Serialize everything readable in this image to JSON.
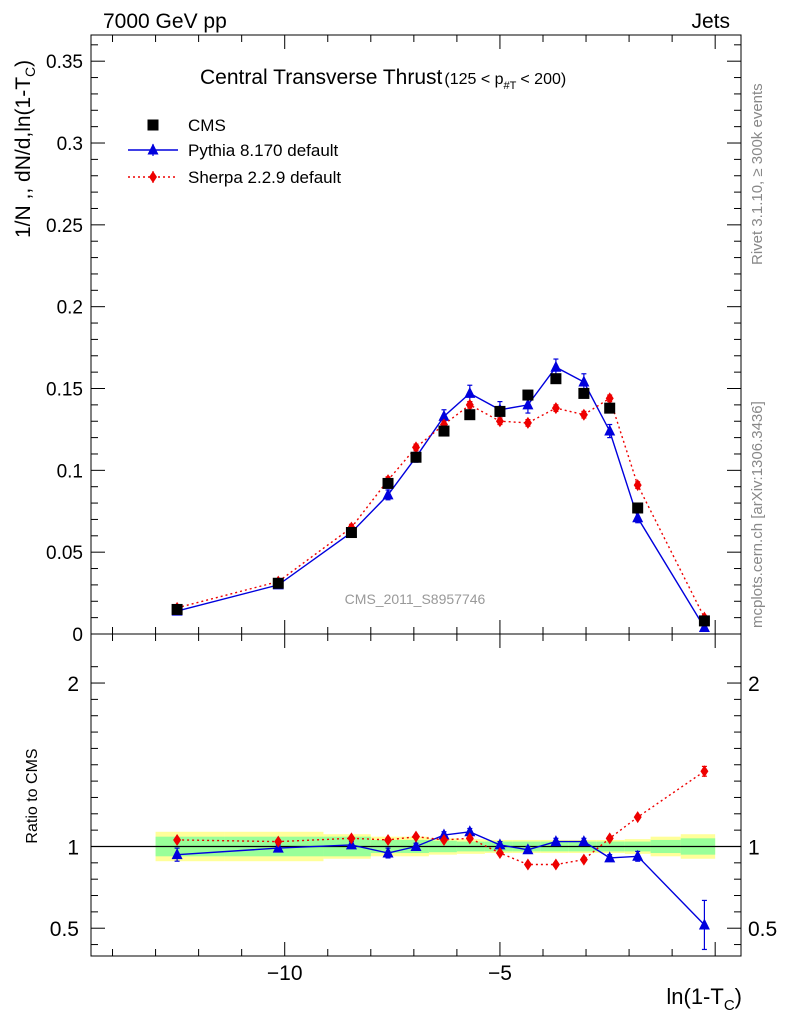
{
  "header": {
    "left": "7000 GeV pp",
    "right": "Jets",
    "side_top": "Rivet 3.1.10, ≥ 300k events",
    "side_bottom": "mcplots.cern.ch [arXiv:1306.3436]",
    "watermark": "CMS_2011_S8957746"
  },
  "chart_data": [
    {
      "type": "line",
      "panel": "main",
      "title": "Central Transverse Thrust",
      "subtitle": "(125 < p_#T < 200)",
      "xlabel": "ln(1-T_C)",
      "ylabel": "1/N ,, dN/d,ln(1-T_C)",
      "xlim": [
        -14.5,
        0.6
      ],
      "ylim": [
        0,
        0.366
      ],
      "yticks": [
        0,
        0.05,
        0.1,
        0.15,
        0.2,
        0.25,
        0.3,
        0.35
      ],
      "ytick_labels": [
        "0",
        "0.05",
        "0.1",
        "0.15",
        "0.2",
        "0.25",
        "0.3",
        "0.35"
      ],
      "x": [
        -12.5,
        -10.15,
        -8.45,
        -7.6,
        -6.95,
        -6.3,
        -5.7,
        -5.0,
        -4.35,
        -3.7,
        -3.05,
        -2.45,
        -1.8,
        -0.25
      ],
      "series": [
        {
          "name": "CMS",
          "color": "#000000",
          "marker": "square",
          "values": [
            0.015,
            0.031,
            0.062,
            0.092,
            0.108,
            0.124,
            0.134,
            0.136,
            0.146,
            0.156,
            0.147,
            0.138,
            0.077,
            0.008
          ]
        },
        {
          "name": "Pythia 8.170 default",
          "color": "#0000dd",
          "marker": "triangle",
          "line": "solid",
          "values": [
            0.014,
            0.03,
            0.062,
            0.085,
            0.108,
            0.133,
            0.147,
            0.137,
            0.14,
            0.163,
            0.154,
            0.124,
            0.071,
            0.004
          ],
          "errors": [
            0.001,
            0.001,
            0.002,
            0.003,
            0.003,
            0.004,
            0.005,
            0.005,
            0.005,
            0.005,
            0.005,
            0.004,
            0.003,
            0.002
          ]
        },
        {
          "name": "Sherpa 2.2.9 default",
          "color": "#ee0000",
          "marker": "diamond",
          "line": "dotted",
          "values": [
            0.016,
            0.032,
            0.065,
            0.094,
            0.114,
            0.128,
            0.14,
            0.13,
            0.129,
            0.138,
            0.134,
            0.144,
            0.091,
            0.01
          ],
          "errors": [
            0.001,
            0.001,
            0.002,
            0.002,
            0.002,
            0.002,
            0.002,
            0.002,
            0.002,
            0.002,
            0.002,
            0.002,
            0.002,
            0.001
          ]
        }
      ]
    },
    {
      "type": "line",
      "panel": "ratio",
      "xlabel": "ln(1-T_C)",
      "ylabel": "Ratio to CMS",
      "xlim": [
        -14.5,
        0.6
      ],
      "ylim": [
        0.33,
        2.3
      ],
      "yticks": [
        0.5,
        1,
        2
      ],
      "ytick_labels": [
        "0.5",
        "1",
        "2"
      ],
      "xticks": [
        -10,
        -5
      ],
      "xtick_labels": [
        "−10",
        "−5"
      ],
      "x": [
        -12.5,
        -10.15,
        -8.45,
        -7.6,
        -6.95,
        -6.3,
        -5.7,
        -5.0,
        -4.35,
        -3.7,
        -3.05,
        -2.45,
        -1.8,
        -0.25
      ],
      "bands": {
        "edges": [
          -13.0,
          -11.4,
          -9.1,
          -8.0,
          -7.3,
          -6.65,
          -6.0,
          -5.35,
          -4.7,
          -4.05,
          -3.4,
          -2.75,
          -2.1,
          -1.5,
          -0.8,
          0.0
        ],
        "green_half": [
          0.06,
          0.06,
          0.06,
          0.04,
          0.04,
          0.035,
          0.03,
          0.03,
          0.03,
          0.03,
          0.03,
          0.03,
          0.03,
          0.04,
          0.05
        ],
        "yellow_half": [
          0.09,
          0.09,
          0.075,
          0.06,
          0.06,
          0.05,
          0.045,
          0.04,
          0.04,
          0.04,
          0.04,
          0.04,
          0.045,
          0.06,
          0.075
        ]
      },
      "series": [
        {
          "name": "Pythia 8.170 default",
          "color": "#0000dd",
          "marker": "triangle",
          "line": "solid",
          "values": [
            0.95,
            0.99,
            1.01,
            0.96,
            1.0,
            1.07,
            1.09,
            1.01,
            0.98,
            1.03,
            1.03,
            0.93,
            0.94,
            0.52
          ],
          "errors": [
            0.04,
            0.02,
            0.02,
            0.03,
            0.02,
            0.02,
            0.02,
            0.02,
            0.02,
            0.02,
            0.02,
            0.02,
            0.03,
            0.15
          ]
        },
        {
          "name": "Sherpa 2.2.9 default",
          "color": "#ee0000",
          "marker": "diamond",
          "line": "dotted",
          "values": [
            1.04,
            1.03,
            1.05,
            1.04,
            1.06,
            1.04,
            1.05,
            0.96,
            0.89,
            0.89,
            0.92,
            1.05,
            1.18,
            1.46
          ],
          "errors": [
            0.01,
            0.01,
            0.01,
            0.01,
            0.01,
            0.01,
            0.01,
            0.01,
            0.01,
            0.01,
            0.01,
            0.01,
            0.01,
            0.03
          ]
        }
      ]
    }
  ]
}
